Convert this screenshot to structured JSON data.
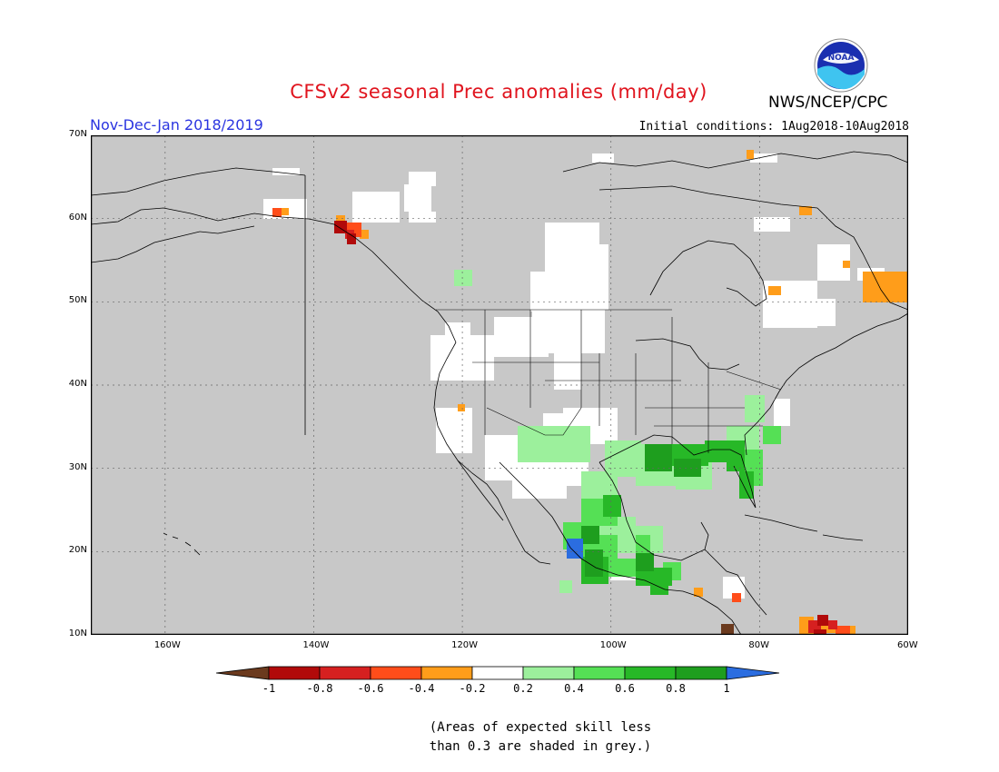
{
  "title": "CFSv2 seasonal Prec anomalies (mm/day)",
  "period": "Nov-Dec-Jan 2018/2019",
  "agency": "NWS/NCEP/CPC",
  "logo_text": "NOAA",
  "initial_conditions": "Initial conditions: 1Aug2018-10Aug2018",
  "lat_labels": [
    "70N",
    "60N",
    "50N",
    "40N",
    "30N",
    "20N",
    "10N"
  ],
  "lon_labels": [
    "160W",
    "140W",
    "120W",
    "100W",
    "80W",
    "60W"
  ],
  "colorbar": {
    "tick_labels": [
      "-1",
      "-0.8",
      "-0.6",
      "-0.4",
      "-0.2",
      "0.2",
      "0.4",
      "0.6",
      "0.8",
      "1"
    ],
    "colors": [
      "#6b3a1e",
      "#b10a0a",
      "#d62020",
      "#ff4d1a",
      "#ff9d1a",
      "#ffffff",
      "#9cf09c",
      "#55e055",
      "#27b827",
      "#1e9e1e",
      "#2b6de0"
    ]
  },
  "colors": {
    "land_grey": "#c8c8c8",
    "near_normal": "#ffffff",
    "title_red": "#e0141e",
    "period_blue": "#2a34e0"
  },
  "note": [
    "(Areas of expected skill less",
    "than 0.3 are shaded in grey.)"
  ]
}
